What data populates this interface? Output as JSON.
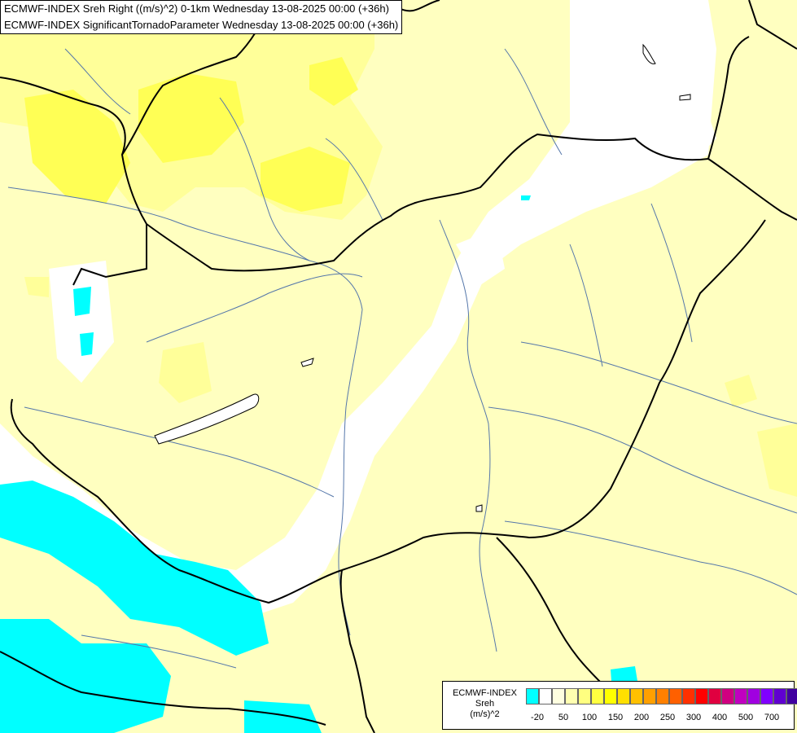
{
  "titles": {
    "line1": "ECMWF-INDEX Sreh Right ((m/s)^2) 0-1km Wednesday 13-08-2025 00:00 (+36h)",
    "line2": "ECMWF-INDEX SignificantTornadoParameter Wednesday 13-08-2025 00:00 (+36h)"
  },
  "legend": {
    "line1": "ECMWF-INDEX",
    "line2": "Sreh",
    "line3": "(m/s)^2",
    "colors": [
      "#00ffff",
      "#ffffff",
      "#ffffe0",
      "#ffffb0",
      "#ffff80",
      "#ffff40",
      "#ffff00",
      "#ffe000",
      "#ffc000",
      "#ffa000",
      "#ff8000",
      "#ff6000",
      "#ff3000",
      "#ff0000",
      "#e00040",
      "#d00080",
      "#c000c0",
      "#a000e0",
      "#8000ff",
      "#6000d0",
      "#4000a0",
      "#200080",
      "#000070"
    ],
    "ticks": [
      "-20",
      "50",
      "100",
      "150",
      "200",
      "250",
      "300",
      "400",
      "500",
      "700"
    ]
  },
  "colors": {
    "cyan": "#00ffff",
    "white": "#ffffff",
    "pale_yellow": "#ffffc0",
    "yellow_light": "#ffff99",
    "yellow": "#ffff55",
    "border": "#000000",
    "river": "#5577aa"
  }
}
